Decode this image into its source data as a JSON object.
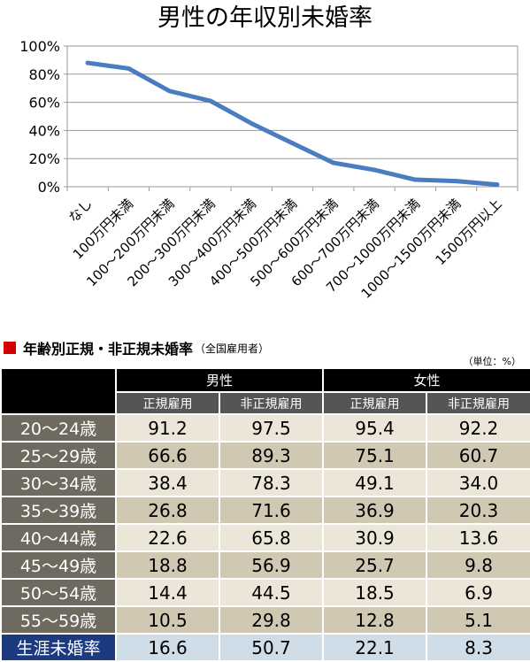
{
  "chart_data": {
    "type": "line",
    "title": "男性の年収別未婚率",
    "categories": [
      "なし",
      "100万円未満",
      "100～200万円未満",
      "200～300万円未満",
      "300～400万円未満",
      "400～500万円未満",
      "500～600万円未満",
      "600～700万円未満",
      "700～1000万円未満",
      "1000～1500万円未満",
      "1500万円以上"
    ],
    "values": [
      88,
      84,
      68,
      61,
      45,
      31,
      17,
      12,
      5,
      4,
      1.5
    ],
    "ylim": [
      0,
      100
    ],
    "yticks": [
      "0%",
      "20%",
      "40%",
      "60%",
      "80%",
      "100%"
    ],
    "grid": true,
    "color": "#4a7cc0"
  },
  "table": {
    "title": "年齢別正規・非正規未婚率",
    "subtitle": "（全国雇用者）",
    "unit": "（単位：%）",
    "groups": [
      "男性",
      "女性"
    ],
    "columns": [
      "正規雇用",
      "非正規雇用",
      "正規雇用",
      "非正規雇用"
    ],
    "rows": [
      {
        "label": "20～24歳",
        "values": [
          "91.2",
          "97.5",
          "95.4",
          "92.2"
        ]
      },
      {
        "label": "25～29歳",
        "values": [
          "66.6",
          "89.3",
          "75.1",
          "60.7"
        ]
      },
      {
        "label": "30～34歳",
        "values": [
          "38.4",
          "78.3",
          "49.1",
          "34.0"
        ]
      },
      {
        "label": "35～39歳",
        "values": [
          "26.8",
          "71.6",
          "36.9",
          "20.3"
        ]
      },
      {
        "label": "40～44歳",
        "values": [
          "22.6",
          "65.8",
          "30.9",
          "13.6"
        ]
      },
      {
        "label": "45～49歳",
        "values": [
          "18.8",
          "56.9",
          "25.7",
          "9.8"
        ]
      },
      {
        "label": "50～54歳",
        "values": [
          "14.4",
          "44.5",
          "18.5",
          "6.9"
        ]
      },
      {
        "label": "55～59歳",
        "values": [
          "10.5",
          "29.8",
          "12.8",
          "5.1"
        ]
      },
      {
        "label": "生涯未婚率",
        "values": [
          "16.6",
          "50.7",
          "22.1",
          "8.3"
        ]
      }
    ]
  }
}
